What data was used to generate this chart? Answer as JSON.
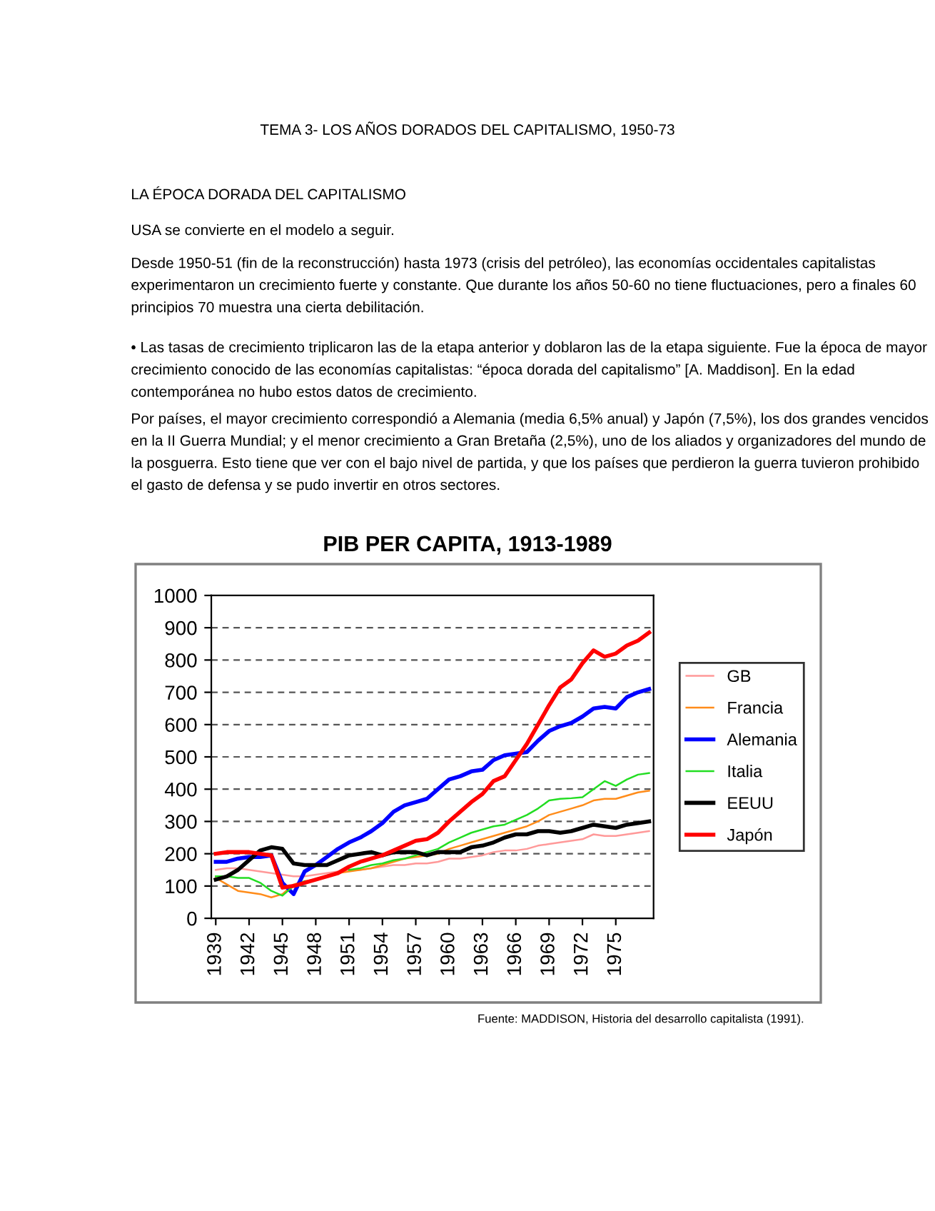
{
  "chart_data": {
    "type": "line",
    "title": "PIB PER CAPITA, 1913-1989",
    "x": [
      1939,
      1940,
      1941,
      1942,
      1943,
      1944,
      1945,
      1946,
      1947,
      1948,
      1949,
      1950,
      1951,
      1952,
      1953,
      1954,
      1955,
      1956,
      1957,
      1958,
      1959,
      1960,
      1961,
      1962,
      1963,
      1964,
      1965,
      1966,
      1967,
      1968,
      1969,
      1970,
      1971,
      1972,
      1973,
      1974,
      1975,
      1976,
      1977,
      1978
    ],
    "series": [
      {
        "name": "GB",
        "color": "#ff9999",
        "values": [
          150,
          155,
          155,
          150,
          145,
          140,
          135,
          130,
          130,
          135,
          140,
          145,
          150,
          150,
          155,
          160,
          165,
          165,
          170,
          170,
          175,
          185,
          185,
          190,
          195,
          205,
          210,
          210,
          215,
          225,
          230,
          235,
          240,
          245,
          260,
          255,
          255,
          260,
          265,
          270
        ]
      },
      {
        "name": "Francia",
        "color": "#ff8c1a",
        "values": [
          125,
          105,
          85,
          80,
          75,
          65,
          75,
          105,
          115,
          120,
          130,
          140,
          145,
          150,
          155,
          165,
          175,
          185,
          190,
          195,
          200,
          215,
          225,
          235,
          245,
          255,
          265,
          275,
          285,
          300,
          320,
          330,
          340,
          350,
          365,
          370,
          370,
          380,
          390,
          395
        ]
      },
      {
        "name": "Alemania",
        "color": "#0000ff",
        "values": [
          175,
          175,
          185,
          190,
          190,
          195,
          110,
          75,
          145,
          165,
          190,
          215,
          235,
          250,
          270,
          295,
          330,
          350,
          360,
          370,
          400,
          430,
          440,
          455,
          460,
          490,
          505,
          510,
          515,
          550,
          580,
          595,
          605,
          625,
          650,
          655,
          650,
          685,
          700,
          710
        ]
      },
      {
        "name": "Italia",
        "color": "#22dd22",
        "values": [
          130,
          130,
          125,
          125,
          110,
          85,
          70,
          100,
          115,
          null,
          null,
          null,
          150,
          155,
          165,
          170,
          180,
          185,
          195,
          205,
          215,
          235,
          250,
          265,
          275,
          285,
          290,
          305,
          320,
          340,
          365,
          370,
          372,
          375,
          400,
          425,
          410,
          430,
          445,
          450
        ]
      },
      {
        "name": "EEUU",
        "color": "#000000",
        "values": [
          120,
          130,
          150,
          180,
          210,
          220,
          215,
          170,
          165,
          165,
          165,
          180,
          195,
          200,
          205,
          195,
          205,
          205,
          205,
          195,
          205,
          205,
          205,
          220,
          225,
          235,
          250,
          260,
          260,
          270,
          270,
          265,
          270,
          280,
          290,
          285,
          280,
          290,
          295,
          300
        ]
      },
      {
        "name": "Japón",
        "color": "#ff0000",
        "values": [
          200,
          205,
          205,
          205,
          200,
          195,
          95,
          100,
          110,
          120,
          130,
          140,
          160,
          175,
          185,
          195,
          210,
          225,
          240,
          245,
          265,
          300,
          330,
          360,
          385,
          425,
          440,
          490,
          540,
          600,
          660,
          715,
          740,
          790,
          830,
          810,
          820,
          845,
          860,
          885
        ]
      }
    ],
    "xlim": [
      1938.6,
      1978.4
    ],
    "xticks": [
      1939,
      1942,
      1945,
      1948,
      1951,
      1954,
      1957,
      1960,
      1963,
      1966,
      1969,
      1972,
      1975
    ],
    "ylim": [
      0,
      1000
    ],
    "yticks": [
      0,
      100,
      200,
      300,
      400,
      500,
      600,
      700,
      800,
      900,
      1000
    ],
    "grid": "y",
    "legend": "right",
    "marker": "none",
    "line_style": "solid",
    "annotations": [
      "TEMA 3- LOS AÑOS DORADOS DEL CAPITALISMO, 1950-73",
      "LA ÉPOCA DORADA DEL CAPITALISMO",
      "USA se convierte en el modelo a seguir.",
      "Desde 1950-51 (fin de la reconstrucción) hasta 1973 (crisis del petróleo), las economías occidentales capitalistas experimentaron un crecimiento fuerte y constante. Que durante los años 50-60 no tiene fluctuaciones, pero a finales 60 principios 70 muestra una cierta debilitación.",
      "• Las tasas de crecimiento triplicaron las de la etapa anterior y doblaron las de la etapa siguiente. Fue la época de mayor crecimiento conocido de las economías capitalistas: “época dorada del capitalismo” [A. Maddison]. En la edad contemporánea no hubo estos datos de crecimiento.",
      "Por países, el mayor crecimiento correspondió a Alemania (media 6,5% anual) y Japón (7,5%), los dos grandes vencidos en la II Guerra Mundial; y el menor crecimiento a Gran Bretaña (2,5%), uno de los aliados y organizadores del mundo de la posguerra. Esto tiene que ver con el bajo nivel de partida, y que los países que perdieron la guerra tuvieron prohibido el gasto de defensa y se pudo invertir en otros sectores.",
      "Fuente: MADDISON, Historia del desarrollo capitalista (1991)."
    ]
  }
}
